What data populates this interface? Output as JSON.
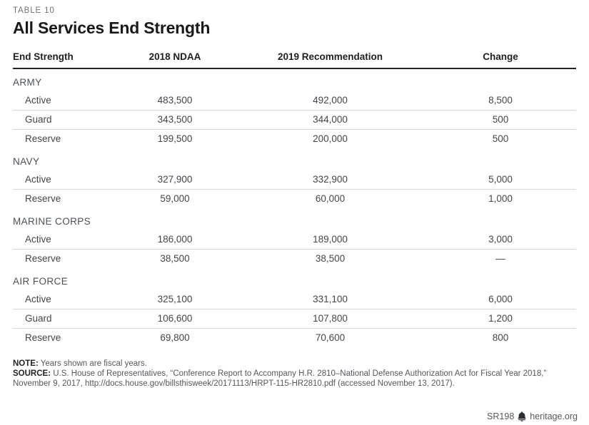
{
  "header": {
    "table_label": "TABLE 10",
    "title": "All Services End Strength"
  },
  "chart_data": {
    "type": "table",
    "title": "All Services End Strength",
    "columns": [
      "End Strength",
      "2018 NDAA",
      "2019 Recommendation",
      "Change"
    ],
    "sections": [
      {
        "name": "ARMY",
        "rows": [
          [
            "Active",
            "483,500",
            "492,000",
            "8,500"
          ],
          [
            "Guard",
            "343,500",
            "344,000",
            "500"
          ],
          [
            "Reserve",
            "199,500",
            "200,000",
            "500"
          ]
        ]
      },
      {
        "name": "NAVY",
        "rows": [
          [
            "Active",
            "327,900",
            "332,900",
            "5,000"
          ],
          [
            "Reserve",
            "59,000",
            "60,000",
            "1,000"
          ]
        ]
      },
      {
        "name": "MARINE CORPS",
        "rows": [
          [
            "Active",
            "186,000",
            "189,000",
            "3,000"
          ],
          [
            "Reserve",
            "38,500",
            "38,500",
            "—"
          ]
        ]
      },
      {
        "name": "AIR FORCE",
        "rows": [
          [
            "Active",
            "325,100",
            "331,100",
            "6,000"
          ],
          [
            "Guard",
            "106,600",
            "107,800",
            "1,200"
          ],
          [
            "Reserve",
            "69,800",
            "70,600",
            "800"
          ]
        ]
      }
    ]
  },
  "notes": {
    "note_label": "NOTE:",
    "note_text": " Years shown are fiscal years.",
    "source_label": "SOURCE:",
    "source_line1": " U.S. House of Representatives, “Conference Report to Accompany H.R. 2810–National Defense Authorization Act for Fiscal Year 2018,”",
    "source_line2": "November 9, 2017, http://docs.house.gov/billsthisweek/20171113/HRPT-115-HR2810.pdf (accessed November 13, 2017)."
  },
  "footer": {
    "report_id": "SR198",
    "site": "heritage.org",
    "logo_icon": "heritage-bell-icon"
  },
  "colors": {
    "label_gray": "#6e7377",
    "title_black": "#17191b",
    "body_text": "#42464a",
    "section_text": "#4b5055",
    "rule_light": "#d6d7d8",
    "rule_dark": "#212325",
    "footer_gray": "#54585c"
  }
}
